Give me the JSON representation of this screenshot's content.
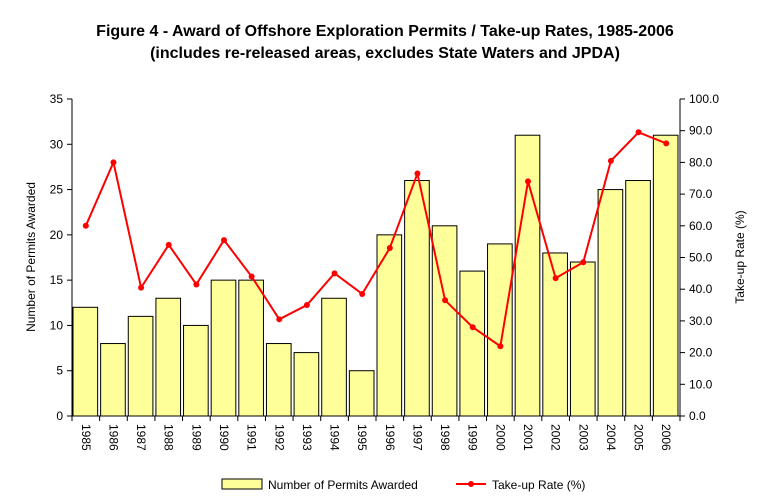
{
  "chart_data": {
    "type": "bar+line",
    "title": "Figure 4 - Award of Offshore Exploration Permits / Take-up Rates, 1985-2006",
    "subtitle": "(includes re-released areas, excludes State Waters and JPDA)",
    "categories": [
      "1985",
      "1986",
      "1987",
      "1988",
      "1989",
      "1990",
      "1991",
      "1992",
      "1993",
      "1994",
      "1995",
      "1996",
      "1997",
      "1998",
      "1999",
      "2000",
      "2001",
      "2002",
      "2003",
      "2004",
      "2005",
      "2006"
    ],
    "series": [
      {
        "name": "Number of Permits Awarded",
        "type": "bar",
        "axis": "left",
        "color": "#FFFF99",
        "values": [
          12,
          8,
          11,
          13,
          10,
          15,
          15,
          8,
          7,
          13,
          5,
          20,
          26,
          21,
          16,
          19,
          31,
          18,
          17,
          25,
          26,
          31
        ]
      },
      {
        "name": "Take-up Rate (%)",
        "type": "line",
        "axis": "right",
        "color": "#FF0000",
        "values": [
          60.0,
          80.0,
          40.5,
          54.0,
          41.5,
          55.5,
          44.0,
          30.5,
          35.0,
          45.0,
          38.5,
          53.0,
          76.5,
          36.5,
          28.0,
          22.0,
          74.0,
          43.5,
          48.5,
          80.5,
          89.5,
          86.0
        ]
      }
    ],
    "ylabel": "Number of Permits Awarded",
    "ylim": [
      0,
      35
    ],
    "yticks": [
      "0",
      "5",
      "10",
      "15",
      "20",
      "25",
      "30",
      "35"
    ],
    "y2label": "Take-up Rate (%)",
    "y2lim": [
      0,
      100
    ],
    "y2ticks": [
      "0.0",
      "10.0",
      "20.0",
      "30.0",
      "40.0",
      "50.0",
      "60.0",
      "70.0",
      "80.0",
      "90.0",
      "100.0"
    ],
    "grid": false,
    "legend": "bottom"
  }
}
